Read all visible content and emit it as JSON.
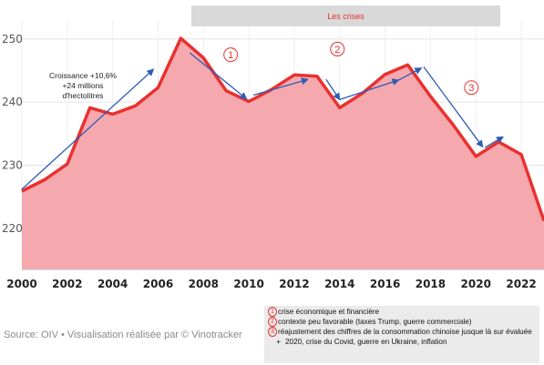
{
  "chart_data": {
    "type": "area",
    "title": "",
    "xlabel": "",
    "ylabel": "",
    "x": [
      2000,
      2001,
      2002,
      2003,
      2004,
      2005,
      2006,
      2007,
      2008,
      2009,
      2010,
      2011,
      2012,
      2013,
      2014,
      2015,
      2016,
      2017,
      2018,
      2019,
      2020,
      2021,
      2022,
      2023
    ],
    "series": [
      {
        "values": [
          225.9,
          227.7,
          230.2,
          239.1,
          238.1,
          239.4,
          242.3,
          250.1,
          247.0,
          241.8,
          240.1,
          242.0,
          244.3,
          244.1,
          239.1,
          241.4,
          244.4,
          245.9,
          240.9,
          236.4,
          231.4,
          233.7,
          231.7,
          221.2
        ]
      }
    ],
    "xlim": [
      2000,
      2023
    ],
    "ylim": [
      213.5,
      253
    ],
    "xticks": [
      "2000",
      "2002",
      "2004",
      "2006",
      "2008",
      "2010",
      "2012",
      "2014",
      "2016",
      "2018",
      "2020",
      "2022"
    ],
    "yticks": [
      "220",
      "230",
      "240",
      "250"
    ],
    "grid": true,
    "area_color": "#f5a8ad",
    "line_color": "#e8312f",
    "arrow_color": "#2f5bb7",
    "arrows": [
      {
        "from": [
          2000.0,
          226.2
        ],
        "to": [
          2005.8,
          245.2
        ]
      },
      {
        "from": [
          2007.4,
          247.8
        ],
        "to": [
          2009.9,
          240.5
        ]
      },
      {
        "from": [
          2010.2,
          241.1
        ],
        "to": [
          2012.6,
          243.6
        ]
      },
      {
        "from": [
          2013.4,
          243.6
        ],
        "to": [
          2014.0,
          240.4
        ]
      },
      {
        "from": [
          2014.0,
          240.4
        ],
        "to": [
          2016.6,
          243.5
        ]
      },
      {
        "from": [
          2016.6,
          243.5
        ],
        "to": [
          2017.6,
          245.4
        ]
      },
      {
        "from": [
          2017.7,
          245.6
        ],
        "to": [
          2020.3,
          232.9
        ]
      },
      {
        "from": [
          2020.4,
          232.8
        ],
        "to": [
          2021.2,
          234.5
        ]
      }
    ],
    "crisis_markers": [
      {
        "label": "1",
        "x": 2009.2,
        "y": 247.5
      },
      {
        "label": "2",
        "x": 2013.9,
        "y": 248.4
      },
      {
        "label": "3",
        "x": 2019.8,
        "y": 242.3
      }
    ],
    "banner": "Les crises",
    "growth_note": [
      "Croissance +10,6%",
      "+24 millions",
      "d'hectolitres"
    ]
  },
  "legend": {
    "items": [
      {
        "num": "1",
        "text": "crise économique et financière"
      },
      {
        "num": "2",
        "text": "contexte peu favorable (taxes Trump, guerre commerciale)"
      },
      {
        "num": "3",
        "text": "réajustement des chiffres de la consommation chinoise jusque là sur évaluée"
      }
    ],
    "extra_symbol": "+",
    "extra_text": "2020, crise du Covid, guerre en Ukraine, inflation"
  },
  "source": "Source: OIV • Visualisation réalisée par © Vinotracker"
}
